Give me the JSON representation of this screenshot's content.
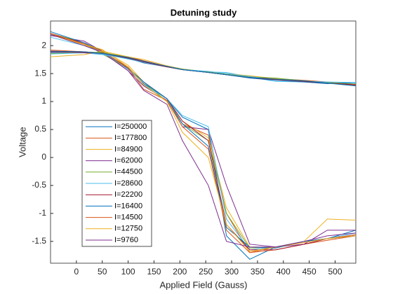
{
  "chart_data": {
    "type": "line",
    "title": "Detuning study",
    "x_label": "Applied Field (Gauss)",
    "y_label": "Voltage",
    "x": [
      -50,
      15,
      50,
      100,
      130,
      175,
      205,
      255,
      290,
      335,
      385,
      440,
      485,
      540
    ],
    "xlim": [
      -50,
      540
    ],
    "xticks": [
      0,
      50,
      100,
      150,
      200,
      250,
      300,
      350,
      400,
      450,
      500
    ],
    "ylim": [
      -1.89,
      2.44
    ],
    "yticks": [
      -1.5,
      -1,
      -0.5,
      0,
      0.5,
      1,
      1.5,
      2
    ],
    "series": [
      {
        "name": "I=250000",
        "color": "#0072BD",
        "values": [
          2.22,
          2.05,
          1.9,
          1.58,
          1.32,
          1.05,
          0.72,
          0.5,
          -1.4,
          -1.82,
          -1.6,
          -1.5,
          -1.45,
          -1.3
        ]
      },
      {
        "name": "I=177800",
        "color": "#D95319",
        "values": [
          2.2,
          2.02,
          1.88,
          1.62,
          1.3,
          1.0,
          0.6,
          0.4,
          -1.0,
          -1.7,
          -1.65,
          -1.55,
          -1.48,
          -1.4
        ]
      },
      {
        "name": "I=84900",
        "color": "#EDB120",
        "values": [
          2.2,
          2.0,
          1.92,
          1.65,
          1.35,
          1.05,
          0.65,
          0.35,
          -0.9,
          -1.6,
          -1.62,
          -1.5,
          -1.1,
          -1.12
        ]
      },
      {
        "name": "I=62000",
        "color": "#7E2F8E",
        "values": [
          2.18,
          2.08,
          1.9,
          1.55,
          1.28,
          1.02,
          0.55,
          0.5,
          -0.5,
          -1.55,
          -1.6,
          -1.55,
          -1.3,
          -1.3
        ]
      },
      {
        "name": "I=44500",
        "color": "#77AC30",
        "values": [
          2.22,
          2.05,
          1.85,
          1.6,
          1.35,
          1.0,
          0.6,
          0.3,
          -1.0,
          -1.62,
          -1.6,
          -1.5,
          -1.45,
          -1.4
        ]
      },
      {
        "name": "I=28600",
        "color": "#4DBEEE",
        "values": [
          2.15,
          2.0,
          1.88,
          1.6,
          1.3,
          1.05,
          0.75,
          0.55,
          -1.1,
          -1.65,
          -1.6,
          -1.5,
          -1.45,
          -1.35
        ]
      },
      {
        "name": "I=22200",
        "color": "#A2142F",
        "values": [
          2.2,
          2.05,
          1.9,
          1.6,
          1.35,
          1.05,
          0.65,
          0.3,
          -1.2,
          -1.65,
          -1.65,
          -1.55,
          -1.45,
          -1.4
        ]
      },
      {
        "name": "I=16400",
        "color": "#0072BD",
        "values": [
          2.25,
          2.05,
          1.9,
          1.6,
          1.35,
          1.05,
          0.6,
          0.2,
          -1.25,
          -1.6,
          -1.62,
          -1.5,
          -1.45,
          -1.4
        ]
      },
      {
        "name": "I=14500",
        "color": "#D95319",
        "values": [
          2.22,
          2.03,
          1.9,
          1.6,
          1.22,
          1.02,
          0.55,
          0.15,
          -1.3,
          -1.7,
          -1.6,
          -1.52,
          -1.45,
          -1.38
        ]
      },
      {
        "name": "I=12750",
        "color": "#EDB120",
        "values": [
          2.2,
          2.02,
          1.93,
          1.62,
          1.3,
          1.0,
          0.45,
          0.0,
          -1.2,
          -1.68,
          -1.6,
          -1.52,
          -1.45,
          -1.4
        ]
      },
      {
        "name": "I=9760",
        "color": "#7E2F8E",
        "values": [
          2.2,
          2.0,
          1.88,
          1.55,
          1.2,
          0.95,
          0.3,
          -0.5,
          -1.5,
          -1.6,
          -1.6,
          -1.5,
          -1.4,
          -1.35
        ]
      },
      {
        "color": "#77AC30",
        "values": [
          1.88,
          1.88,
          1.86,
          1.78,
          1.7,
          1.62,
          1.57,
          1.52,
          1.48,
          1.43,
          1.4,
          1.36,
          1.33,
          1.3
        ]
      },
      {
        "color": "#4DBEEE",
        "values": [
          1.85,
          1.87,
          1.84,
          1.77,
          1.71,
          1.63,
          1.58,
          1.53,
          1.52,
          1.44,
          1.36,
          1.35,
          1.34,
          1.33
        ]
      },
      {
        "color": "#A2142F",
        "values": [
          1.9,
          1.89,
          1.86,
          1.79,
          1.72,
          1.63,
          1.58,
          1.52,
          1.49,
          1.44,
          1.4,
          1.37,
          1.34,
          1.31
        ]
      },
      {
        "color": "#0072BD",
        "values": [
          1.88,
          1.88,
          1.85,
          1.77,
          1.69,
          1.62,
          1.57,
          1.52,
          1.48,
          1.42,
          1.38,
          1.35,
          1.32,
          1.34
        ]
      },
      {
        "color": "#D95319",
        "values": [
          1.92,
          1.89,
          1.87,
          1.8,
          1.73,
          1.63,
          1.58,
          1.53,
          1.49,
          1.45,
          1.41,
          1.38,
          1.35,
          1.29
        ]
      },
      {
        "color": "#EDB120",
        "values": [
          1.8,
          1.84,
          1.9,
          1.8,
          1.75,
          1.64,
          1.58,
          1.53,
          1.5,
          1.46,
          1.41,
          1.37,
          1.33,
          1.3
        ]
      },
      {
        "color": "#7E2F8E",
        "values": [
          1.88,
          1.87,
          1.86,
          1.78,
          1.7,
          1.62,
          1.57,
          1.52,
          1.48,
          1.43,
          1.39,
          1.36,
          1.33,
          1.3
        ]
      },
      {
        "color": "#77AC30",
        "values": [
          1.86,
          1.88,
          1.88,
          1.79,
          1.71,
          1.63,
          1.58,
          1.53,
          1.49,
          1.44,
          1.42,
          1.37,
          1.34,
          1.31
        ]
      },
      {
        "color": "#4DBEEE",
        "values": [
          1.87,
          1.88,
          1.85,
          1.76,
          1.7,
          1.62,
          1.57,
          1.54,
          1.5,
          1.45,
          1.38,
          1.36,
          1.35,
          1.34
        ]
      },
      {
        "color": "#A2142F",
        "values": [
          1.89,
          1.88,
          1.86,
          1.78,
          1.71,
          1.62,
          1.57,
          1.52,
          1.48,
          1.43,
          1.39,
          1.36,
          1.33,
          1.3
        ]
      },
      {
        "color": "#0072BD",
        "values": [
          1.9,
          1.89,
          1.86,
          1.79,
          1.72,
          1.63,
          1.57,
          1.52,
          1.48,
          1.43,
          1.4,
          1.37,
          1.33,
          1.28
        ]
      }
    ]
  }
}
